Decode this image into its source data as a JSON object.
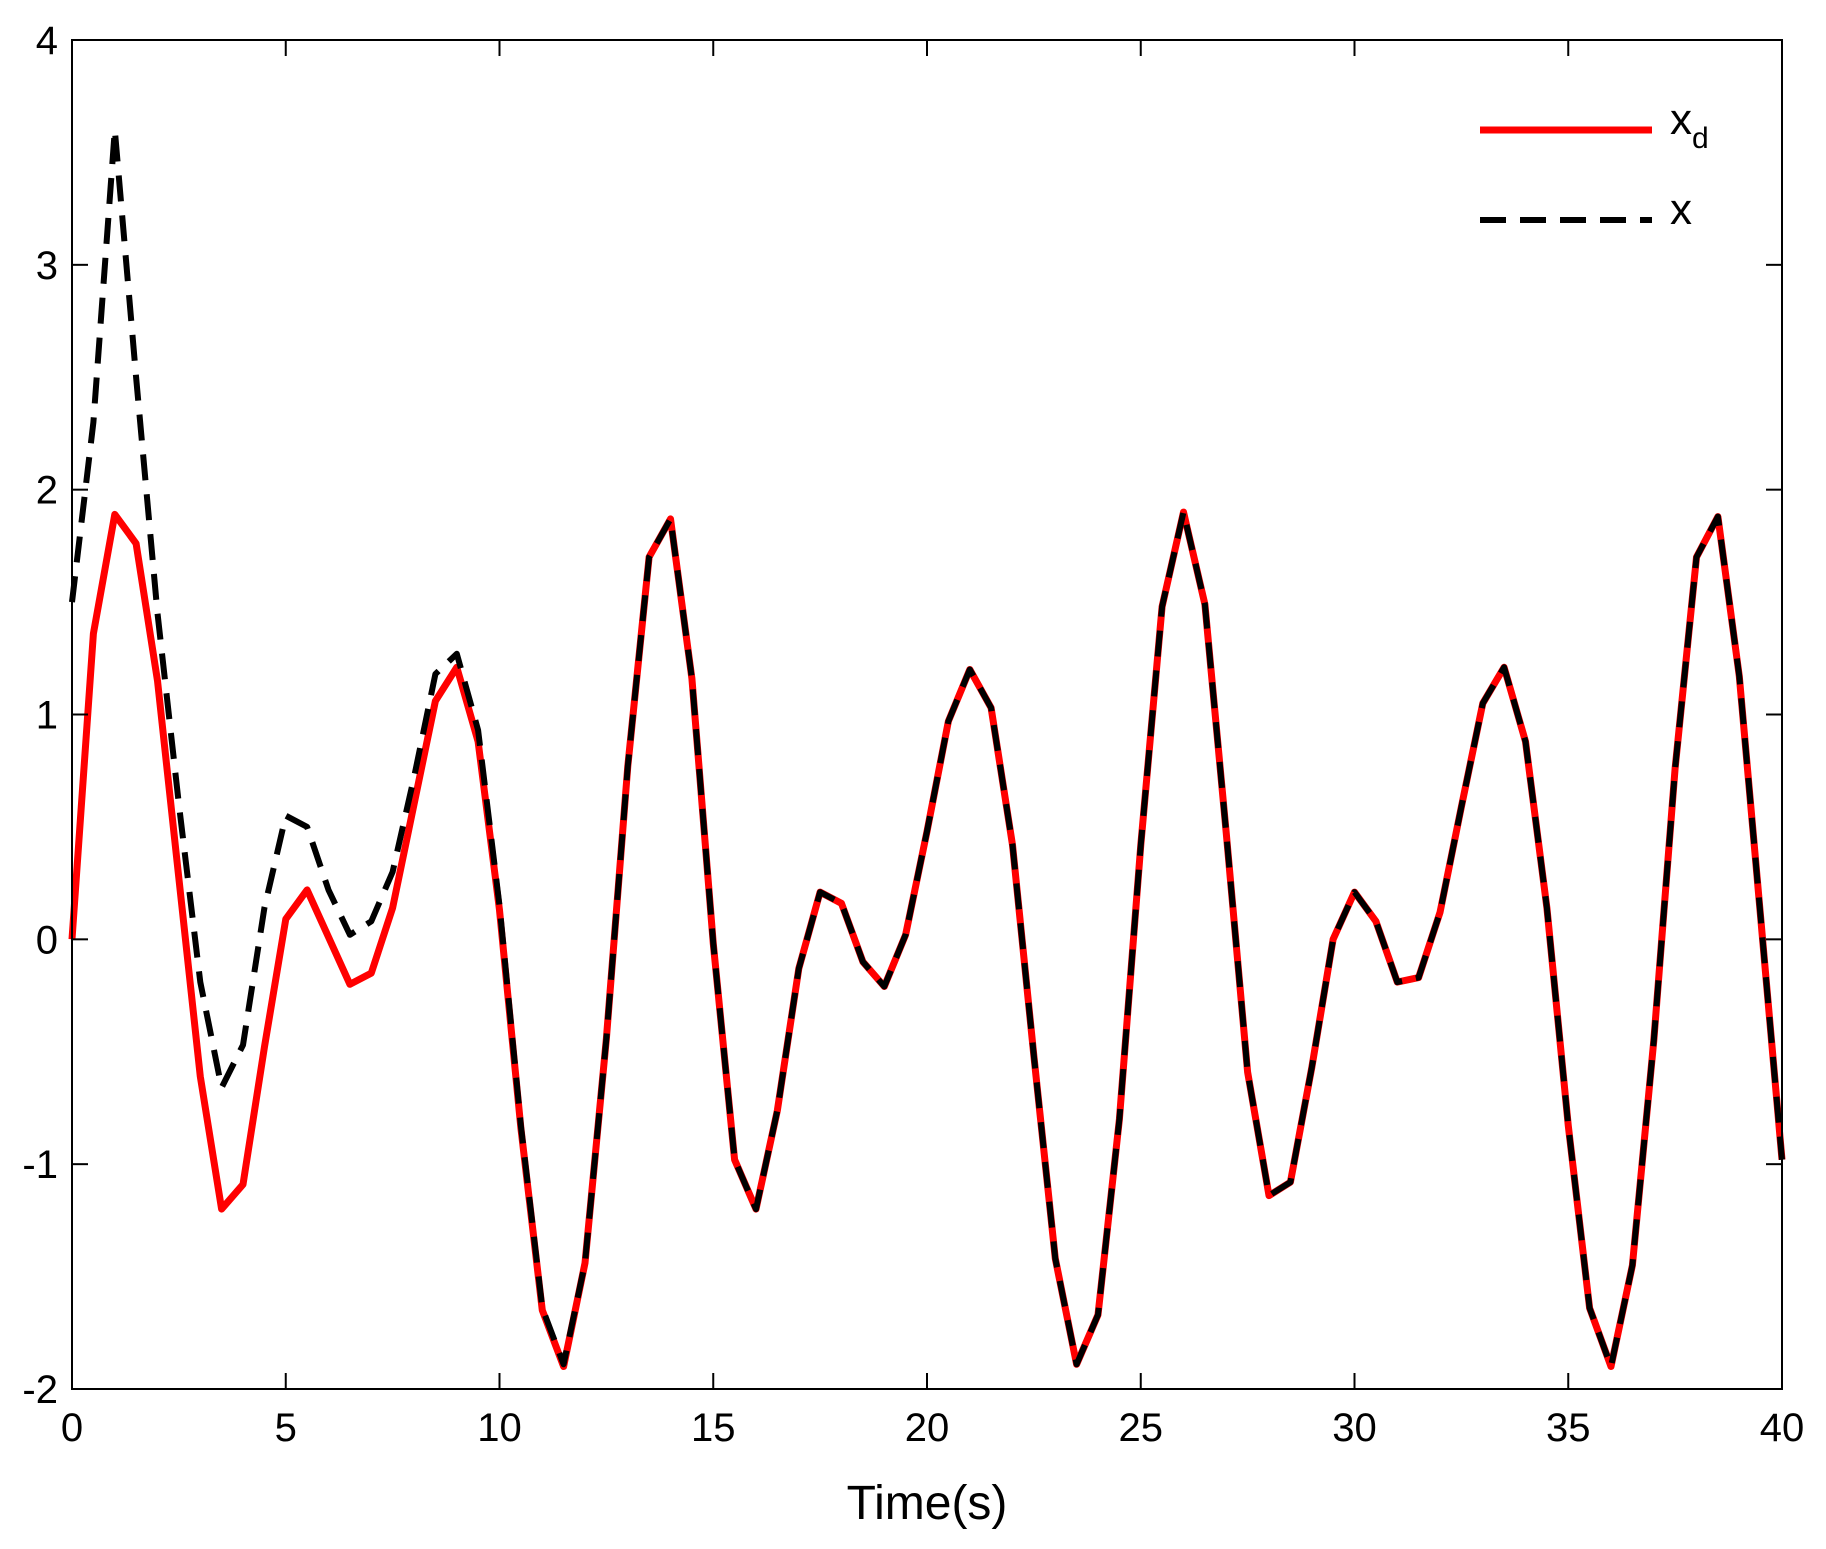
{
  "chart_data": {
    "type": "line",
    "title": "",
    "xlabel": "Time(s)",
    "ylabel": "",
    "xlim": [
      0,
      40
    ],
    "ylim": [
      -2,
      4
    ],
    "xticks": [
      "0",
      "5",
      "10",
      "15",
      "20",
      "25",
      "30",
      "35",
      "40"
    ],
    "yticks": [
      "-2",
      "-1",
      "0",
      "1",
      "2",
      "3",
      "4"
    ],
    "grid": false,
    "legend_position": "top-right",
    "x": [
      0,
      0.5,
      1,
      1.5,
      2,
      2.5,
      3,
      3.5,
      4,
      4.5,
      5,
      5.5,
      6,
      6.5,
      7,
      7.5,
      8,
      8.5,
      9,
      9.5,
      10,
      10.5,
      11,
      11.5,
      12,
      12.5,
      13,
      13.5,
      14,
      14.5,
      15,
      15.5,
      16,
      16.5,
      17,
      17.5,
      18,
      18.5,
      19,
      19.5,
      20,
      20.5,
      21,
      21.5,
      22,
      22.5,
      23,
      23.5,
      24,
      24.5,
      25,
      25.5,
      26,
      26.5,
      27,
      27.5,
      28,
      28.5,
      29,
      29.5,
      30,
      30.5,
      31,
      31.5,
      32,
      32.5,
      33,
      33.5,
      34,
      34.5,
      35,
      35.5,
      36,
      36.5,
      37,
      37.5,
      38,
      38.5,
      39,
      39.5,
      40
    ],
    "series": [
      {
        "name": "x_d",
        "legend_main": "x",
        "legend_sub": "d",
        "color": "#ff0000",
        "style": "solid",
        "values": [
          0.0,
          1.36,
          1.89,
          1.76,
          1.15,
          0.27,
          -0.61,
          -1.2,
          -1.09,
          -0.48,
          0.09,
          0.22,
          0.01,
          -0.2,
          -0.15,
          0.14,
          0.6,
          1.06,
          1.21,
          0.88,
          0.13,
          -0.84,
          -1.65,
          -1.9,
          -1.44,
          -0.44,
          0.77,
          1.7,
          1.87,
          1.16,
          -0.02,
          -0.98,
          -1.2,
          -0.76,
          -0.13,
          0.21,
          0.16,
          -0.1,
          -0.21,
          0.02,
          0.48,
          0.97,
          1.2,
          1.03,
          0.42,
          -0.52,
          -1.42,
          -1.89,
          -1.67,
          -0.8,
          0.42,
          1.48,
          1.9,
          1.49,
          0.47,
          -0.59,
          -1.14,
          -1.08,
          -0.57,
          0.0,
          0.21,
          0.08,
          -0.19,
          -0.17,
          0.12,
          0.59,
          1.05,
          1.21,
          0.88,
          0.14,
          -0.83,
          -1.64,
          -1.9,
          -1.45,
          -0.45,
          0.76,
          1.7,
          1.88,
          1.17,
          0.1,
          -0.98
        ]
      },
      {
        "name": "x",
        "legend_main": "x",
        "legend_sub": "",
        "color": "#000000",
        "style": "dashed",
        "values": [
          1.5,
          2.3,
          3.6,
          2.5,
          1.45,
          0.6,
          -0.19,
          -0.66,
          -0.47,
          0.14,
          0.55,
          0.5,
          0.22,
          0.02,
          0.08,
          0.3,
          0.72,
          1.18,
          1.27,
          0.93,
          0.15,
          -0.83,
          -1.64,
          -1.89,
          -1.44,
          -0.44,
          0.77,
          1.7,
          1.87,
          1.16,
          -0.02,
          -0.98,
          -1.2,
          -0.76,
          -0.13,
          0.21,
          0.16,
          -0.1,
          -0.21,
          0.02,
          0.48,
          0.97,
          1.2,
          1.03,
          0.42,
          -0.52,
          -1.42,
          -1.89,
          -1.67,
          -0.8,
          0.42,
          1.48,
          1.9,
          1.49,
          0.47,
          -0.59,
          -1.14,
          -1.08,
          -0.57,
          0.0,
          0.21,
          0.08,
          -0.19,
          -0.17,
          0.12,
          0.59,
          1.05,
          1.21,
          0.88,
          0.14,
          -0.83,
          -1.64,
          -1.9,
          -1.45,
          -0.45,
          0.76,
          1.7,
          1.88,
          1.17,
          0.1,
          -0.98
        ]
      }
    ]
  }
}
